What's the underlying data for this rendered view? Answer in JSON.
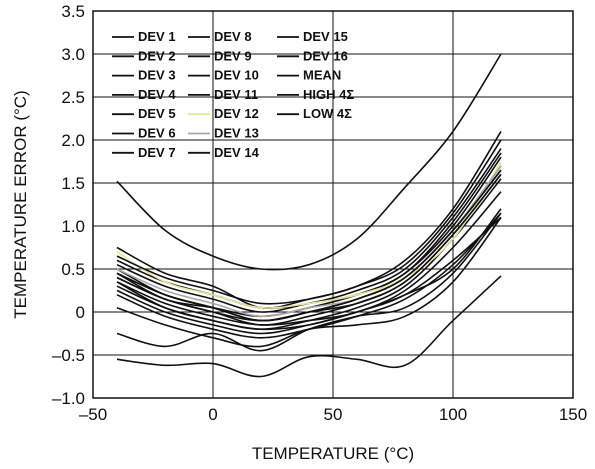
{
  "chart_data": {
    "type": "line",
    "xlabel": "TEMPERATURE (°C)",
    "ylabel": "TEMPERATURE ERROR (°C)",
    "xlim": [
      -50,
      150
    ],
    "ylim": [
      -1.0,
      3.5
    ],
    "xticks": [
      -50,
      0,
      50,
      100,
      150
    ],
    "yticks": [
      -1.0,
      -0.5,
      0,
      0.5,
      1.0,
      1.5,
      2.0,
      2.5,
      3.0,
      3.5
    ],
    "xtick_labels": [
      "–50",
      "0",
      "50",
      "100",
      "150"
    ],
    "ytick_labels": [
      "–1.0",
      "–0.5",
      "0",
      "0.5",
      "1.0",
      "1.5",
      "2.0",
      "2.5",
      "3.0",
      "3.5"
    ],
    "grid": true,
    "legend_position": "top-left",
    "legend_columns": 3,
    "colors": {
      "default": "#111111",
      "dev12": "#e6e39a",
      "dev13": "#a8a8a8"
    },
    "series": [
      {
        "name": "DEV 1",
        "x": [
          -40,
          -20,
          0,
          20,
          40,
          60,
          80,
          100,
          120
        ],
        "y": [
          0.5,
          0.2,
          0.05,
          -0.1,
          0.0,
          0.15,
          0.4,
          0.95,
          1.7
        ]
      },
      {
        "name": "DEV 2",
        "x": [
          -40,
          -20,
          0,
          20,
          40,
          60,
          80,
          100,
          120
        ],
        "y": [
          0.4,
          0.15,
          0.0,
          -0.15,
          -0.05,
          0.1,
          0.35,
          0.9,
          1.6
        ]
      },
      {
        "name": "DEV 3",
        "x": [
          -40,
          -20,
          0,
          20,
          40,
          60,
          80,
          100,
          120
        ],
        "y": [
          0.3,
          0.05,
          -0.1,
          -0.2,
          -0.1,
          0.05,
          0.3,
          0.85,
          1.55
        ]
      },
      {
        "name": "DEV 4",
        "x": [
          -40,
          -20,
          0,
          20,
          40,
          60,
          80,
          100,
          120
        ],
        "y": [
          0.6,
          0.35,
          0.2,
          0.05,
          0.1,
          0.25,
          0.5,
          1.1,
          1.9
        ]
      },
      {
        "name": "DEV 5",
        "x": [
          -40,
          -20,
          0,
          20,
          40,
          60,
          80,
          100,
          120
        ],
        "y": [
          0.45,
          0.15,
          0.05,
          -0.05,
          0.05,
          0.2,
          0.45,
          1.05,
          1.85
        ]
      },
      {
        "name": "DEV 6",
        "x": [
          -40,
          -20,
          0,
          20,
          40,
          60,
          80,
          100,
          120
        ],
        "y": [
          0.35,
          0.1,
          -0.05,
          -0.15,
          -0.1,
          0.0,
          0.25,
          0.75,
          1.4
        ]
      },
      {
        "name": "DEV 7",
        "x": [
          -40,
          -20,
          0,
          20,
          40,
          60,
          80,
          100,
          120
        ],
        "y": [
          0.2,
          -0.05,
          -0.2,
          -0.3,
          -0.2,
          -0.05,
          0.15,
          0.55,
          1.15
        ]
      },
      {
        "name": "DEV 8",
        "x": [
          -40,
          -20,
          0,
          20,
          40,
          60,
          80,
          100,
          120
        ],
        "y": [
          0.55,
          0.3,
          0.15,
          0.0,
          0.1,
          0.2,
          0.45,
          1.0,
          1.8
        ]
      },
      {
        "name": "DEV 9",
        "x": [
          -40,
          -20,
          0,
          20,
          40,
          60,
          80,
          100,
          120
        ],
        "y": [
          0.75,
          0.45,
          0.3,
          0.05,
          0.15,
          0.3,
          0.6,
          1.2,
          2.1
        ]
      },
      {
        "name": "DEV 10",
        "x": [
          -40,
          -20,
          0,
          20,
          40,
          60,
          80,
          100,
          120
        ],
        "y": [
          0.45,
          0.2,
          0.05,
          -0.1,
          0.0,
          0.15,
          0.4,
          0.95,
          1.65
        ]
      },
      {
        "name": "DEV 11",
        "x": [
          -40,
          -20,
          0,
          20,
          40,
          60,
          80,
          100,
          120
        ],
        "y": [
          0.35,
          0.05,
          -0.1,
          -0.2,
          -0.15,
          0.0,
          0.2,
          0.5,
          1.2
        ]
      },
      {
        "name": "DEV 12",
        "x": [
          -40,
          -20,
          0,
          20,
          40,
          60,
          80,
          100,
          120
        ],
        "y": [
          0.7,
          0.35,
          0.2,
          0.05,
          0.1,
          0.2,
          0.4,
          0.85,
          1.75
        ]
      },
      {
        "name": "DEV 13",
        "x": [
          -40,
          -20,
          0,
          20,
          40,
          60,
          80,
          100,
          120
        ],
        "y": [
          0.5,
          0.25,
          0.1,
          -0.05,
          0.05,
          0.15,
          0.4,
          0.95,
          1.7
        ]
      },
      {
        "name": "DEV 14",
        "x": [
          -40,
          -20,
          0,
          20,
          40,
          60,
          80,
          100,
          120
        ],
        "y": [
          0.4,
          0.15,
          0.0,
          -0.1,
          0.0,
          0.1,
          0.35,
          0.9,
          1.6
        ]
      },
      {
        "name": "DEV 15",
        "x": [
          -40,
          -20,
          0,
          20,
          40,
          60,
          80,
          100,
          120
        ],
        "y": [
          0.65,
          0.4,
          0.25,
          0.1,
          0.15,
          0.3,
          0.55,
          1.15,
          2.0
        ]
      },
      {
        "name": "DEV 16",
        "x": [
          -40,
          -20,
          0,
          20,
          40,
          60,
          80,
          100,
          120
        ],
        "y": [
          0.25,
          0.0,
          -0.15,
          -0.25,
          -0.15,
          0.0,
          0.2,
          0.6,
          1.1
        ]
      },
      {
        "name": "MEAN",
        "x": [
          -40,
          -20,
          0,
          20,
          40,
          60,
          80,
          100,
          120
        ],
        "y": [
          0.45,
          0.2,
          0.05,
          -0.1,
          0.0,
          0.15,
          0.4,
          0.95,
          1.65
        ]
      },
      {
        "name": "HIGH 4Σ",
        "x": [
          -40,
          -20,
          0,
          20,
          40,
          60,
          80,
          100,
          120
        ],
        "y": [
          1.52,
          0.95,
          0.65,
          0.5,
          0.55,
          0.85,
          1.45,
          2.1,
          3.0
        ]
      },
      {
        "name": "LOW 4Σ",
        "x": [
          -40,
          -20,
          0,
          20,
          40,
          60,
          80,
          100,
          120
        ],
        "y": [
          -0.55,
          -0.62,
          -0.6,
          -0.75,
          -0.52,
          -0.55,
          -0.62,
          -0.1,
          0.42
        ]
      },
      {
        "x": [
          -40,
          -20,
          0,
          20,
          40,
          60,
          80,
          100,
          120
        ],
        "y": [
          -0.25,
          -0.4,
          -0.25,
          -0.45,
          -0.2,
          -0.05,
          0.05,
          0.45,
          1.15
        ]
      },
      {
        "x": [
          -40,
          -20,
          0,
          20,
          40,
          60,
          80,
          100,
          120
        ],
        "y": [
          0.05,
          -0.15,
          -0.3,
          -0.4,
          -0.2,
          -0.15,
          -0.05,
          0.35,
          1.1
        ]
      }
    ]
  }
}
